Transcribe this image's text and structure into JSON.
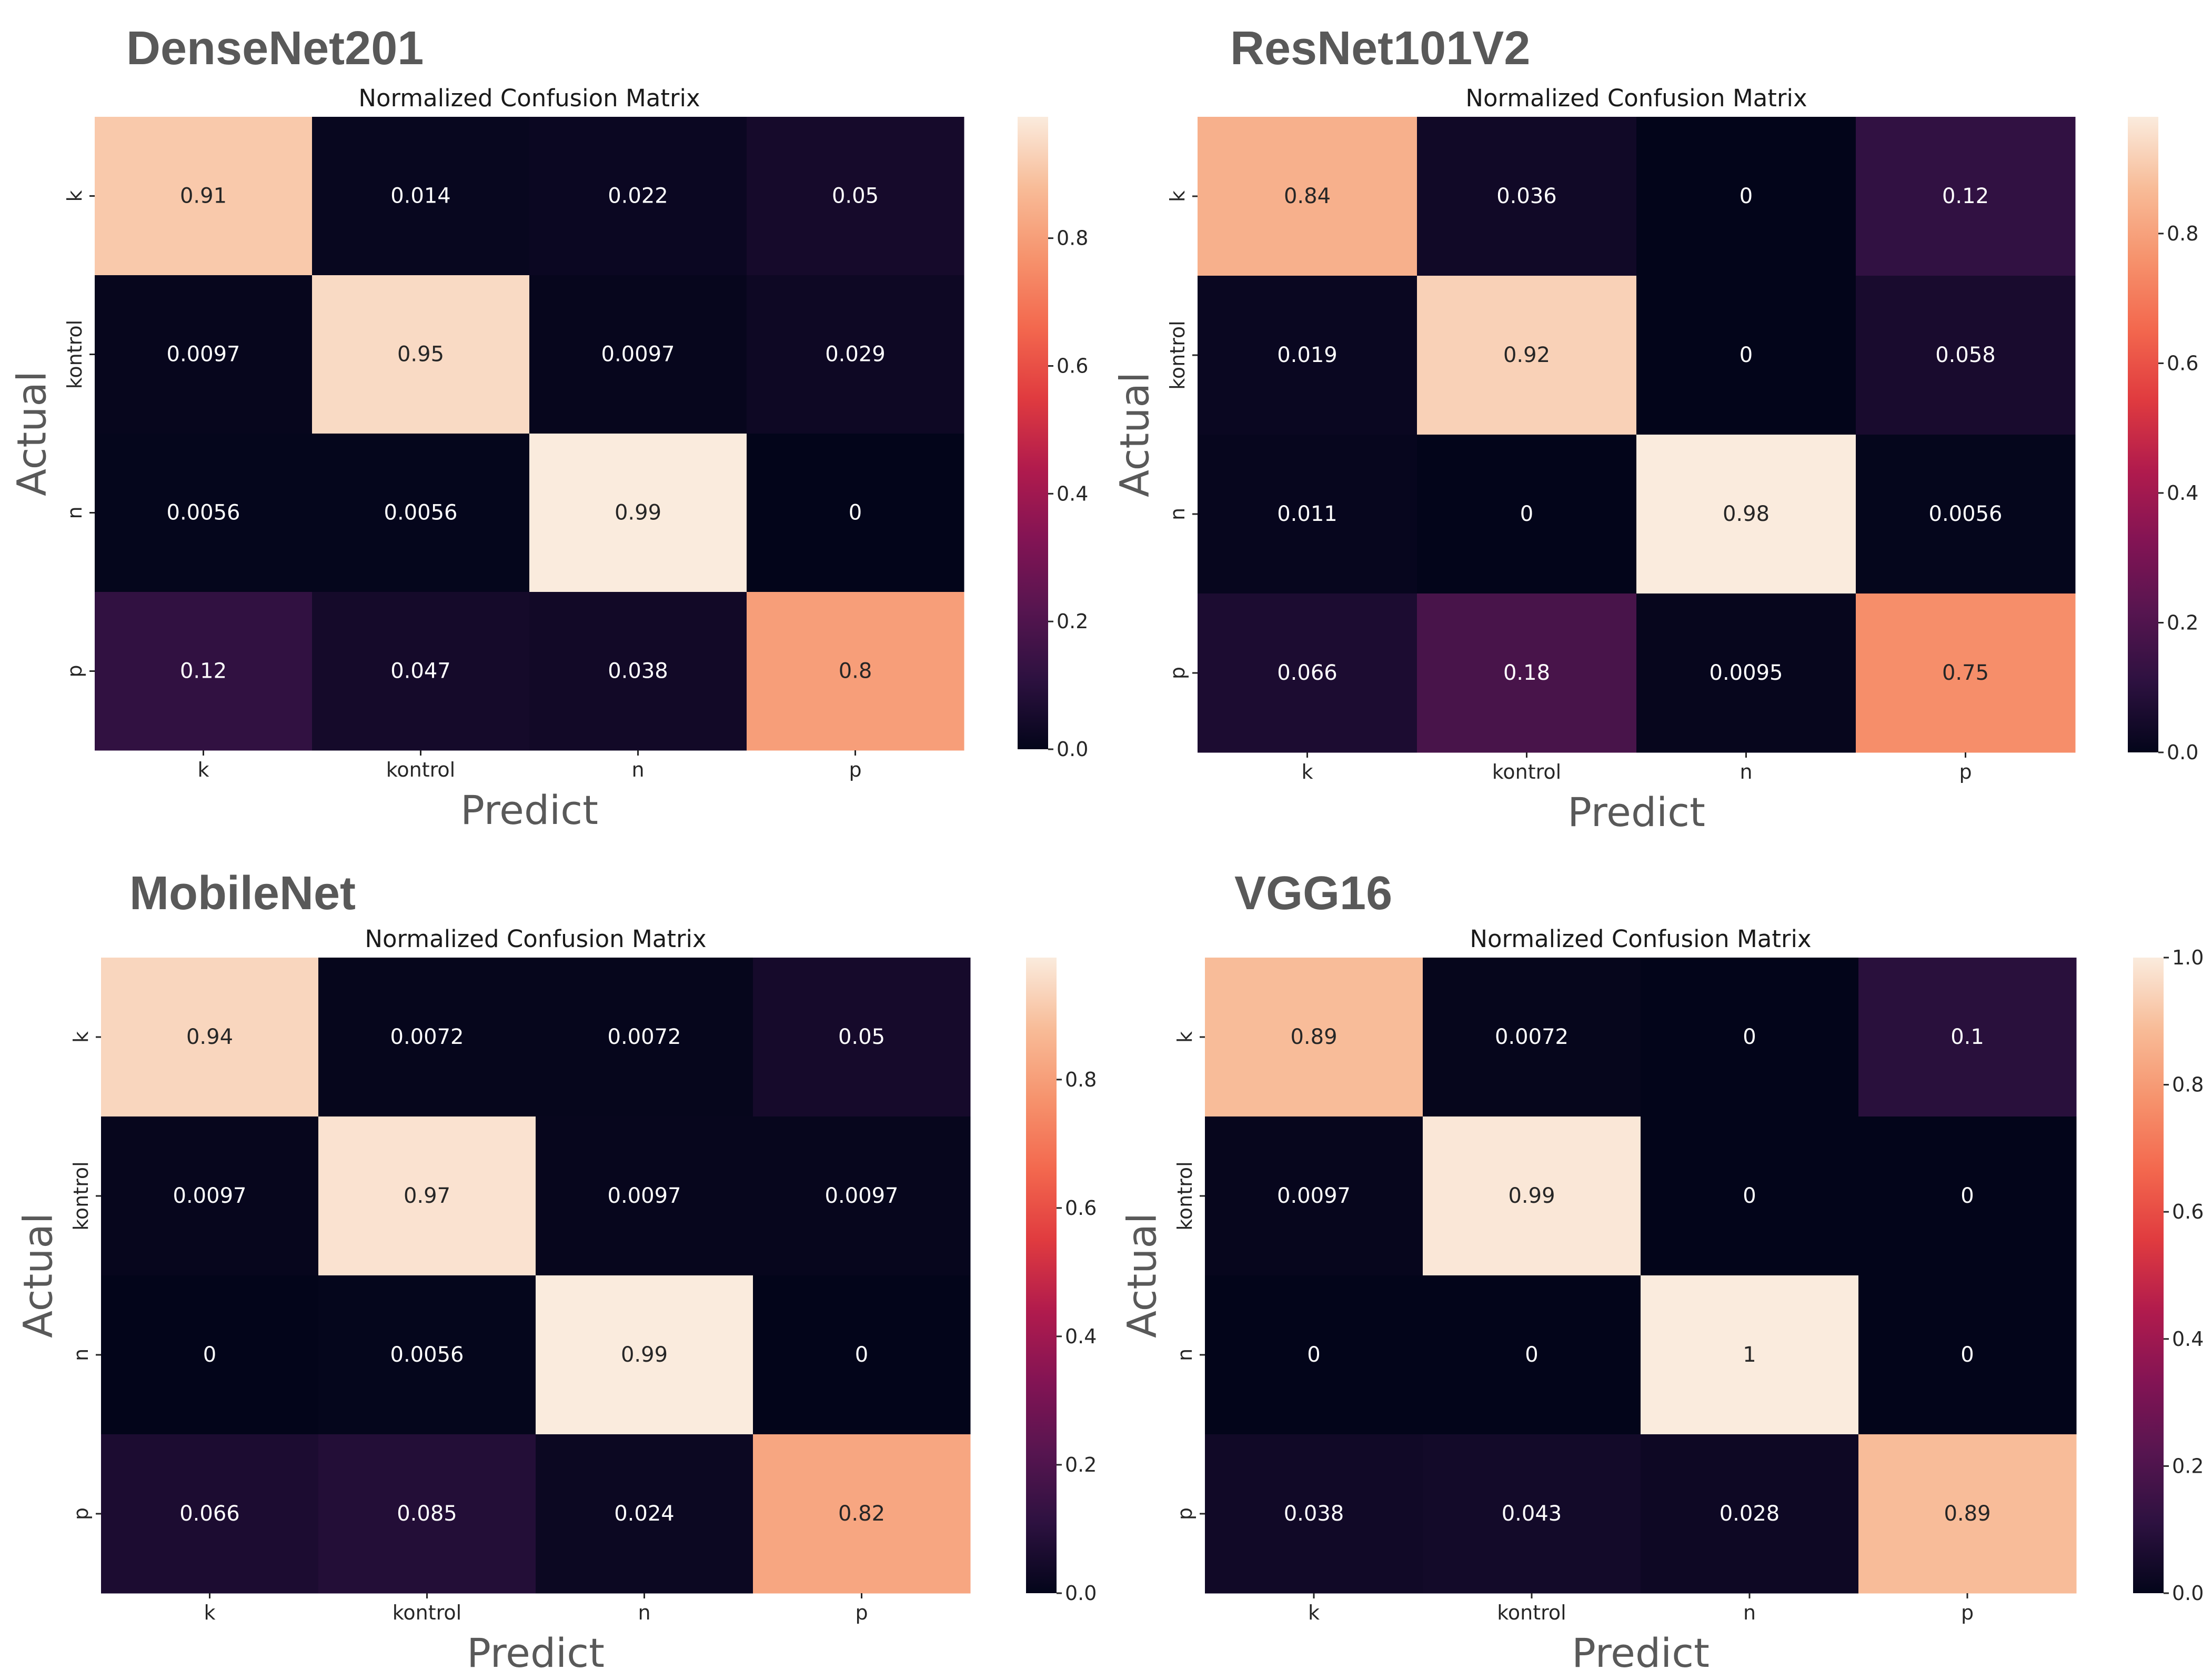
{
  "chart_data": [
    {
      "type": "heatmap",
      "model_name": "DenseNet201",
      "title": "Normalized Confusion Matrix",
      "xlabel": "Predict",
      "ylabel": "Actual",
      "x_categories": [
        "k",
        "kontrol",
        "n",
        "p"
      ],
      "y_categories": [
        "k",
        "kontrol",
        "n",
        "p"
      ],
      "values": [
        [
          0.91,
          0.014,
          0.022,
          0.05
        ],
        [
          0.0097,
          0.95,
          0.0097,
          0.029
        ],
        [
          0.0056,
          0.0056,
          0.99,
          0
        ],
        [
          0.12,
          0.047,
          0.038,
          0.8
        ]
      ],
      "labels": [
        [
          "0.91",
          "0.014",
          "0.022",
          "0.05"
        ],
        [
          "0.0097",
          "0.95",
          "0.0097",
          "0.029"
        ],
        [
          "0.0056",
          "0.0056",
          "0.99",
          "0"
        ],
        [
          "0.12",
          "0.047",
          "0.038",
          "0.8"
        ]
      ],
      "colorbar": {
        "min": 0.0,
        "max": 0.99,
        "ticks": [
          0.0,
          0.2,
          0.4,
          0.6,
          0.8
        ],
        "tick_labels": [
          "0.0",
          "0.2",
          "0.4",
          "0.6",
          "0.8"
        ]
      },
      "colormap": "rocket"
    },
    {
      "type": "heatmap",
      "model_name": "ResNet101V2",
      "title": "Normalized Confusion Matrix",
      "xlabel": "Predict",
      "ylabel": "Actual",
      "x_categories": [
        "k",
        "kontrol",
        "n",
        "p"
      ],
      "y_categories": [
        "k",
        "kontrol",
        "n",
        "p"
      ],
      "values": [
        [
          0.84,
          0.036,
          0,
          0.12
        ],
        [
          0.019,
          0.92,
          0,
          0.058
        ],
        [
          0.011,
          0,
          0.98,
          0.0056
        ],
        [
          0.066,
          0.18,
          0.0095,
          0.75
        ]
      ],
      "labels": [
        [
          "0.84",
          "0.036",
          "0",
          "0.12"
        ],
        [
          "0.019",
          "0.92",
          "0",
          "0.058"
        ],
        [
          "0.011",
          "0",
          "0.98",
          "0.0056"
        ],
        [
          "0.066",
          "0.18",
          "0.0095",
          "0.75"
        ]
      ],
      "colorbar": {
        "min": 0.0,
        "max": 0.98,
        "ticks": [
          0.0,
          0.2,
          0.4,
          0.6,
          0.8
        ],
        "tick_labels": [
          "0.0",
          "0.2",
          "0.4",
          "0.6",
          "0.8"
        ]
      },
      "colormap": "rocket"
    },
    {
      "type": "heatmap",
      "model_name": "MobileNet",
      "title": "Normalized Confusion Matrix",
      "xlabel": "Predict",
      "ylabel": "Actual",
      "x_categories": [
        "k",
        "kontrol",
        "n",
        "p"
      ],
      "y_categories": [
        "k",
        "kontrol",
        "n",
        "p"
      ],
      "values": [
        [
          0.94,
          0.0072,
          0.0072,
          0.05
        ],
        [
          0.0097,
          0.97,
          0.0097,
          0.0097
        ],
        [
          0,
          0.0056,
          0.99,
          0
        ],
        [
          0.066,
          0.085,
          0.024,
          0.82
        ]
      ],
      "labels": [
        [
          "0.94",
          "0.0072",
          "0.0072",
          "0.05"
        ],
        [
          "0.0097",
          "0.97",
          "0.0097",
          "0.0097"
        ],
        [
          "0",
          "0.0056",
          "0.99",
          "0"
        ],
        [
          "0.066",
          "0.085",
          "0.024",
          "0.82"
        ]
      ],
      "colorbar": {
        "min": 0.0,
        "max": 0.99,
        "ticks": [
          0.0,
          0.2,
          0.4,
          0.6,
          0.8
        ],
        "tick_labels": [
          "0.0",
          "0.2",
          "0.4",
          "0.6",
          "0.8"
        ]
      },
      "colormap": "rocket"
    },
    {
      "type": "heatmap",
      "model_name": "VGG16",
      "title": "Normalized Confusion Matrix",
      "xlabel": "Predict",
      "ylabel": "Actual",
      "x_categories": [
        "k",
        "kontrol",
        "n",
        "p"
      ],
      "y_categories": [
        "k",
        "kontrol",
        "n",
        "p"
      ],
      "values": [
        [
          0.89,
          0.0072,
          0,
          0.1
        ],
        [
          0.0097,
          0.99,
          0,
          0
        ],
        [
          0,
          0,
          1,
          0
        ],
        [
          0.038,
          0.043,
          0.028,
          0.89
        ]
      ],
      "labels": [
        [
          "0.89",
          "0.0072",
          "0",
          "0.1"
        ],
        [
          "0.0097",
          "0.99",
          "0",
          "0"
        ],
        [
          "0",
          "0",
          "1",
          "0"
        ],
        [
          "0.038",
          "0.043",
          "0.028",
          "0.89"
        ]
      ],
      "colorbar": {
        "min": 0.0,
        "max": 1.0,
        "ticks": [
          0.0,
          0.2,
          0.4,
          0.6,
          0.8,
          1.0
        ],
        "tick_labels": [
          "0.0",
          "0.2",
          "0.4",
          "0.6",
          "0.8",
          "1.0"
        ]
      },
      "colormap": "rocket"
    }
  ],
  "colormap_stops": [
    "#03051a",
    "#2d1140",
    "#571550",
    "#831454",
    "#b11b4d",
    "#e03b3f",
    "#f3684e",
    "#f6936d",
    "#f8bc98",
    "#faebdd"
  ]
}
